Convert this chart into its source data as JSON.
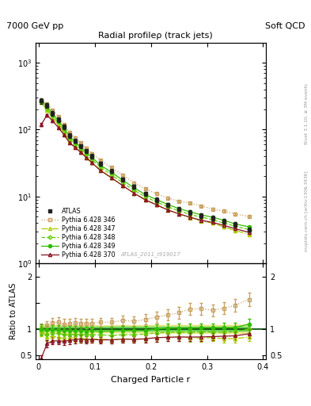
{
  "title": "Radial profileρ (track jets)",
  "top_left": "7000 GeV pp",
  "top_right": "Soft QCD",
  "xlabel": "Charged Particle r",
  "ylabel_bottom": "Ratio to ATLAS",
  "right_label": "Rivet 3.1.10, ≥ 3M events",
  "right_label2": "mcplots.cern.ch [arXiv:1306.3436]",
  "watermark": "ATLAS_2011_I919017",
  "r_vals": [
    0.005,
    0.015,
    0.025,
    0.035,
    0.045,
    0.055,
    0.065,
    0.075,
    0.085,
    0.095,
    0.11,
    0.13,
    0.15,
    0.17,
    0.19,
    0.21,
    0.23,
    0.25,
    0.27,
    0.29,
    0.31,
    0.33,
    0.35,
    0.375
  ],
  "atlas_y": [
    270,
    230,
    175,
    140,
    110,
    82,
    68,
    57,
    48,
    40,
    31,
    24,
    18,
    14,
    11,
    9.0,
    7.5,
    6.5,
    5.8,
    5.2,
    4.8,
    4.3,
    3.8,
    3.2
  ],
  "atlas_yerr": [
    25,
    18,
    14,
    11,
    9,
    7,
    5,
    4,
    3.5,
    3,
    2,
    1.7,
    1.3,
    1.0,
    0.8,
    0.7,
    0.55,
    0.5,
    0.44,
    0.4,
    0.36,
    0.33,
    0.3,
    0.25
  ],
  "p346_y": [
    270,
    245,
    195,
    158,
    120,
    90,
    76,
    63,
    53,
    44,
    35,
    27,
    21,
    16,
    13,
    11,
    9.5,
    8.5,
    8.0,
    7.2,
    6.5,
    6.0,
    5.5,
    5.0
  ],
  "p347_y": [
    255,
    195,
    150,
    118,
    90,
    68,
    56,
    46,
    39,
    32,
    25,
    19,
    14.5,
    11.2,
    9.0,
    7.5,
    6.3,
    5.5,
    4.8,
    4.3,
    4.0,
    3.5,
    3.1,
    2.7
  ],
  "p348_y": [
    260,
    205,
    160,
    128,
    98,
    73,
    61,
    51,
    43,
    35.5,
    27.5,
    21,
    16,
    12.4,
    9.9,
    8.3,
    7.0,
    6.1,
    5.4,
    4.9,
    4.5,
    4.0,
    3.6,
    3.2
  ],
  "p349_y": [
    268,
    225,
    172,
    138,
    106,
    79,
    66,
    55,
    46,
    38.5,
    29.5,
    23,
    17.5,
    13.5,
    10.7,
    9.0,
    7.6,
    6.6,
    5.9,
    5.3,
    4.9,
    4.4,
    3.9,
    3.5
  ],
  "p370_y": [
    120,
    165,
    135,
    108,
    84,
    64,
    54,
    46,
    38,
    32,
    24.5,
    19,
    14.5,
    11.2,
    8.9,
    7.5,
    6.3,
    5.5,
    4.9,
    4.4,
    4.1,
    3.7,
    3.3,
    2.9
  ],
  "p346_yerr": [
    8,
    7,
    6,
    5,
    4,
    3,
    2.5,
    2,
    1.8,
    1.5,
    1.2,
    0.9,
    0.7,
    0.55,
    0.45,
    0.38,
    0.33,
    0.29,
    0.27,
    0.25,
    0.23,
    0.21,
    0.19,
    0.17
  ],
  "p347_yerr": [
    7,
    6,
    5,
    4.5,
    3.5,
    2.7,
    2.2,
    1.8,
    1.5,
    1.2,
    0.95,
    0.72,
    0.55,
    0.43,
    0.35,
    0.29,
    0.24,
    0.21,
    0.19,
    0.17,
    0.16,
    0.14,
    0.12,
    0.11
  ],
  "p348_yerr": [
    7,
    6,
    5.5,
    4.5,
    3.7,
    2.8,
    2.3,
    1.9,
    1.6,
    1.3,
    1.0,
    0.78,
    0.6,
    0.46,
    0.37,
    0.31,
    0.26,
    0.23,
    0.2,
    0.18,
    0.17,
    0.15,
    0.13,
    0.12
  ],
  "p349_yerr": [
    8,
    7,
    6,
    5,
    4,
    3,
    2.5,
    2,
    1.7,
    1.4,
    1.1,
    0.85,
    0.65,
    0.5,
    0.4,
    0.33,
    0.28,
    0.24,
    0.21,
    0.19,
    0.18,
    0.16,
    0.14,
    0.13
  ],
  "p370_yerr": [
    6,
    6.5,
    5.5,
    4.5,
    3.4,
    2.6,
    2.1,
    1.7,
    1.45,
    1.2,
    0.92,
    0.71,
    0.54,
    0.42,
    0.34,
    0.28,
    0.24,
    0.21,
    0.18,
    0.17,
    0.16,
    0.14,
    0.13,
    0.11
  ],
  "color_346": "#c8a060",
  "color_347": "#aacc00",
  "color_348": "#66cc00",
  "color_349": "#33bb00",
  "color_370": "#881122",
  "color_atlas": "#222222",
  "shade_green": "#44cc44",
  "shade_yellow": "#dddd55"
}
